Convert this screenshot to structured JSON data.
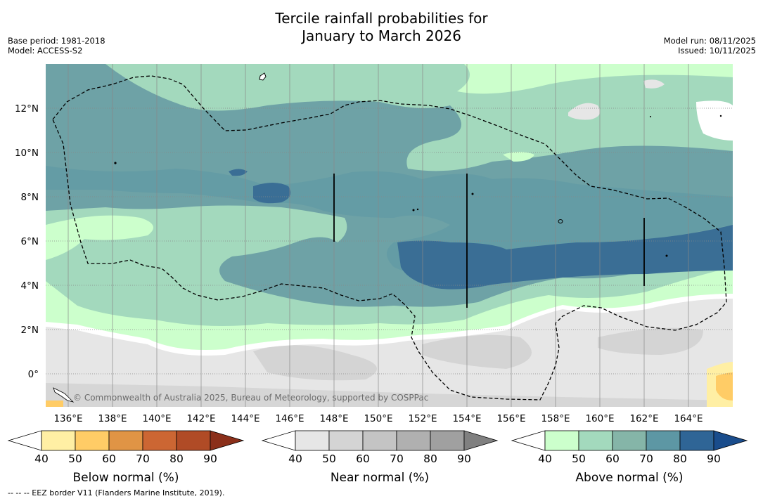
{
  "title_line1": "Tercile rainfall probabilities for",
  "title_line2": "January to March 2026",
  "base_period": "Base period: 1981-2018",
  "model": "Model: ACCESS-S2",
  "model_run": "Model run: 08/11/2025",
  "issued": "Issued: 10/11/2025",
  "credit": "© Commonwealth of Australia 2025, Bureau of Meteorology, supported by COSPPac",
  "lat_labels": [
    "12°N",
    "10°N",
    "8°N",
    "6°N",
    "4°N",
    "2°N",
    "0°"
  ],
  "lon_labels": [
    "136°E",
    "138°E",
    "140°E",
    "142°E",
    "144°E",
    "146°E",
    "148°E",
    "150°E",
    "152°E",
    "154°E",
    "156°E",
    "158°E",
    "160°E",
    "162°E",
    "164°E"
  ],
  "colorbars": [
    {
      "title": "Below normal (%)",
      "ticks": [
        "40",
        "50",
        "60",
        "70",
        "80",
        "90"
      ],
      "colors": [
        "#ffefa4",
        "#ffcc66",
        "#e09445",
        "#cc6633",
        "#b04b26",
        "#8b2f1a"
      ]
    },
    {
      "title": "Near normal (%)",
      "ticks": [
        "40",
        "50",
        "60",
        "70",
        "80",
        "90"
      ],
      "colors": [
        "#e6e6e6",
        "#d4d4d4",
        "#c4c4c4",
        "#b0b0b0",
        "#a0a0a0",
        "#808080"
      ]
    },
    {
      "title": "Above normal (%)",
      "ticks": [
        "40",
        "50",
        "60",
        "70",
        "80",
        "90"
      ],
      "colors": [
        "#ccffcc",
        "#a3d9bd",
        "#85b5a8",
        "#5d97a4",
        "#2f6596",
        "#1a4d8c"
      ]
    }
  ],
  "footer": "--  --  -- EEZ border V11 (Flanders Marine Institute, 2019)."
}
